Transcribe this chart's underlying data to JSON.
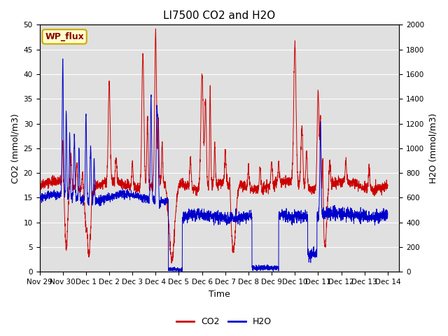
{
  "title": "LI7500 CO2 and H2O",
  "xlabel": "Time",
  "ylabel_left": "CO2 (mmol/m3)",
  "ylabel_right": "H2O (mmol/m3)",
  "annotation": "WP_flux",
  "xlim_days": [
    0,
    15.5
  ],
  "ylim_left": [
    0,
    50
  ],
  "ylim_right": [
    0,
    2000
  ],
  "yticks_left": [
    0,
    5,
    10,
    15,
    20,
    25,
    30,
    35,
    40,
    45,
    50
  ],
  "yticks_right": [
    0,
    200,
    400,
    600,
    800,
    1000,
    1200,
    1400,
    1600,
    1800,
    2000
  ],
  "xtick_labels": [
    "Nov 29",
    "Nov 30",
    "Dec 1",
    "Dec 2",
    "Dec 3",
    "Dec 4",
    "Dec 5",
    "Dec 6",
    "Dec 7",
    "Dec 8",
    "Dec 9",
    "Dec 10",
    "Dec 11",
    "Dec 12",
    "Dec 13",
    "Dec 14"
  ],
  "xtick_positions": [
    0,
    1,
    2,
    3,
    4,
    5,
    6,
    7,
    8,
    9,
    10,
    11,
    12,
    13,
    14,
    15
  ],
  "co2_color": "#cc0000",
  "h2o_color": "#0000cc",
  "bg_color": "#e0e0e0",
  "annotation_bg": "#ffffcc",
  "annotation_border": "#ccaa00",
  "annotation_text_color": "#880000",
  "legend_co2_label": "CO2",
  "legend_h2o_label": "H2O",
  "title_fontsize": 11,
  "axis_label_fontsize": 9,
  "tick_fontsize": 7.5,
  "legend_fontsize": 9
}
